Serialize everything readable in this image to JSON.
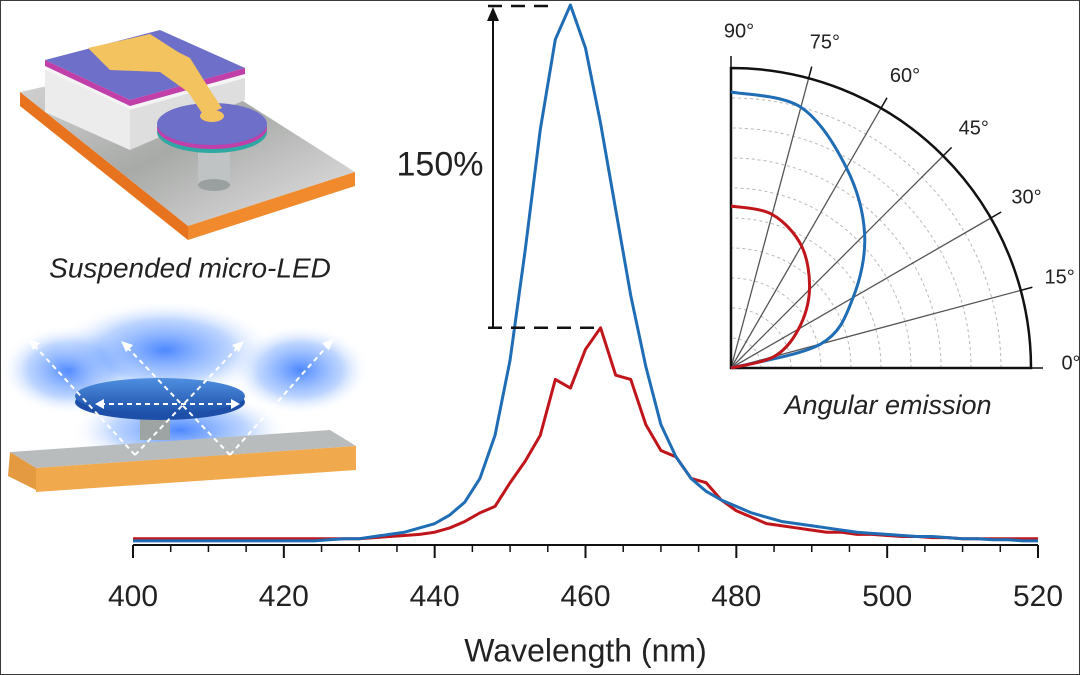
{
  "chart_data": [
    {
      "type": "line",
      "x_label": "Wavelength (nm)",
      "annotation": "150%",
      "x": [
        400,
        402,
        404,
        406,
        408,
        410,
        412,
        414,
        416,
        418,
        420,
        422,
        424,
        426,
        428,
        430,
        432,
        434,
        436,
        438,
        440,
        442,
        444,
        446,
        448,
        450,
        452,
        454,
        456,
        458,
        460,
        462,
        464,
        466,
        468,
        470,
        472,
        474,
        476,
        478,
        480,
        482,
        484,
        486,
        488,
        490,
        492,
        494,
        496,
        498,
        500,
        502,
        504,
        506,
        508,
        510,
        512,
        514,
        516,
        518,
        520
      ],
      "series": [
        {
          "color": "#c0151b",
          "values": [
            0.02,
            0.02,
            0.02,
            0.02,
            0.02,
            0.02,
            0.02,
            0.02,
            0.02,
            0.02,
            0.02,
            0.02,
            0.02,
            0.02,
            0.02,
            0.02,
            0.025,
            0.03,
            0.035,
            0.04,
            0.05,
            0.07,
            0.1,
            0.14,
            0.17,
            0.28,
            0.38,
            0.5,
            0.76,
            0.72,
            0.9,
            1.0,
            0.78,
            0.76,
            0.55,
            0.43,
            0.4,
            0.3,
            0.28,
            0.2,
            0.15,
            0.12,
            0.09,
            0.08,
            0.07,
            0.06,
            0.05,
            0.05,
            0.04,
            0.04,
            0.035,
            0.03,
            0.03,
            0.025,
            0.025,
            0.02,
            0.02,
            0.02,
            0.02,
            0.02,
            0.02
          ]
        },
        {
          "color": "#1f6db5",
          "values": [
            0.01,
            0.01,
            0.01,
            0.01,
            0.01,
            0.01,
            0.01,
            0.01,
            0.01,
            0.01,
            0.01,
            0.01,
            0.01,
            0.015,
            0.02,
            0.02,
            0.03,
            0.04,
            0.05,
            0.07,
            0.09,
            0.13,
            0.19,
            0.3,
            0.5,
            0.85,
            1.36,
            1.92,
            2.34,
            2.5,
            2.3,
            1.95,
            1.55,
            1.15,
            0.82,
            0.55,
            0.4,
            0.3,
            0.24,
            0.2,
            0.17,
            0.14,
            0.12,
            0.1,
            0.09,
            0.08,
            0.07,
            0.06,
            0.05,
            0.045,
            0.04,
            0.035,
            0.03,
            0.03,
            0.025,
            0.02,
            0.02,
            0.015,
            0.015,
            0.01,
            0.01
          ]
        }
      ],
      "xlim": [
        400,
        520
      ],
      "xticks": [
        400,
        420,
        440,
        460,
        480,
        500,
        520
      ],
      "xminorticks": [
        405,
        410,
        415,
        425,
        430,
        435,
        445,
        450,
        455,
        465,
        470,
        475,
        485,
        490,
        495,
        505,
        510,
        515
      ],
      "ylim": [
        0,
        2.5
      ]
    },
    {
      "type": "polar",
      "title": "Angular emission",
      "theta": [
        0,
        15,
        30,
        45,
        60,
        75,
        90
      ],
      "series": [
        {
          "color": "#1f6db5",
          "values": [
            0,
            0.31,
            0.47,
            0.63,
            0.77,
            0.9,
            0.92
          ]
        },
        {
          "color": "#c0151b",
          "values": [
            0,
            0.15,
            0.26,
            0.37,
            0.47,
            0.53,
            0.54
          ]
        }
      ],
      "rlim": [
        0,
        1
      ],
      "rticks": [
        0.1,
        0.2,
        0.3,
        0.4,
        0.5,
        0.6,
        0.7,
        0.8,
        0.9
      ],
      "thetaticks": [
        {
          "value": 0,
          "label": "0°"
        },
        {
          "value": 15,
          "label": "15°"
        },
        {
          "value": 30,
          "label": "30°"
        },
        {
          "value": 45,
          "label": "45°"
        },
        {
          "value": 60,
          "label": "60°"
        },
        {
          "value": 75,
          "label": "75°"
        },
        {
          "value": 90,
          "label": "90°"
        }
      ]
    }
  ],
  "captions": {
    "device": "Suspended micro-LED"
  }
}
